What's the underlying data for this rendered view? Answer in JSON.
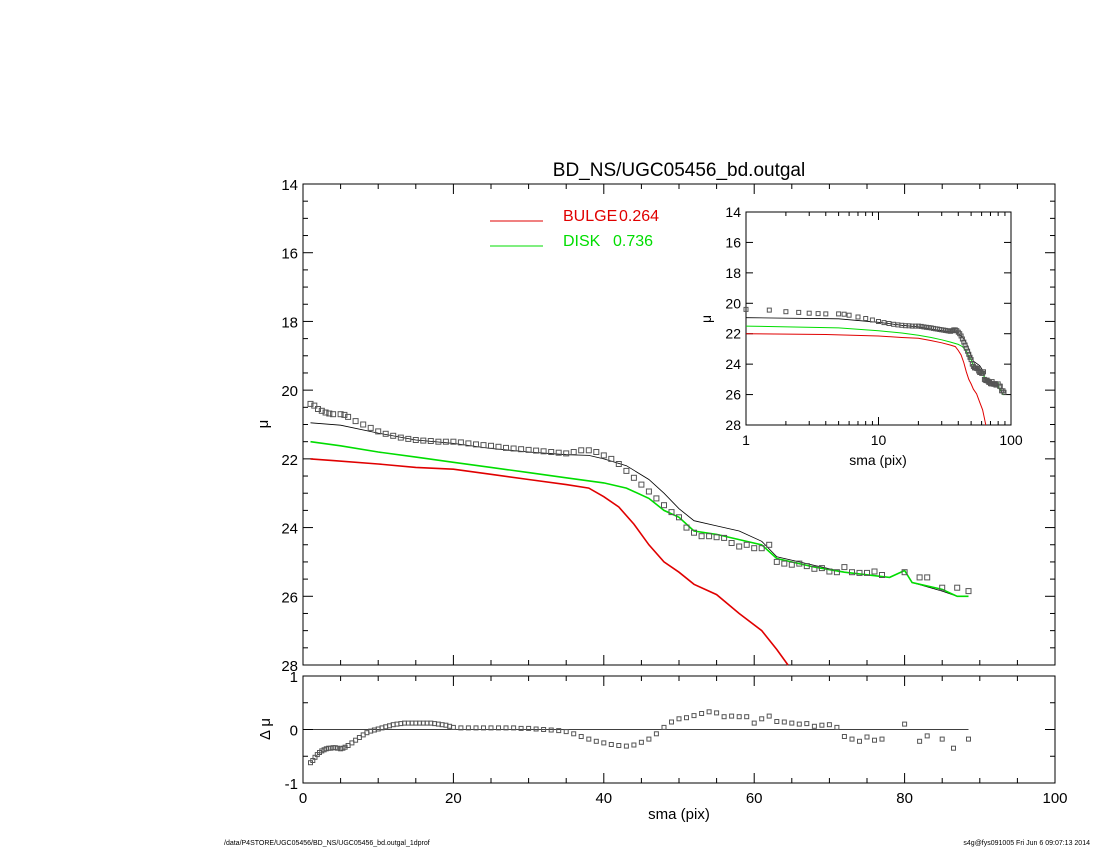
{
  "title": "BD_NS/UGC05456_bd.outgal",
  "footer": {
    "left": "/data/P4STORE/UGC05456/BD_NS/UGC05456_bd.outgal_1dprof",
    "right": "s4g@fys091005  Fri Jun  6 09:07:13 2014"
  },
  "colors": {
    "data": "#555555",
    "model": "#000000",
    "bulge": "#e00000",
    "disk": "#00dd00",
    "axis": "#000000"
  },
  "chart_data": [
    {
      "id": "main",
      "type": "line",
      "title": "BD_NS/UGC05456_bd.outgal",
      "xlabel": "sma (pix)",
      "ylabel": "μ",
      "xlim": [
        0,
        100
      ],
      "ylim": [
        28,
        14
      ],
      "x_ticks": [
        "0",
        "20",
        "40",
        "60",
        "80",
        "100"
      ],
      "y_ticks": [
        "14",
        "16",
        "18",
        "20",
        "22",
        "24",
        "26",
        "28"
      ],
      "legend": {
        "placement": "top-center",
        "entries": [
          {
            "label": "BULGE",
            "value": "0.264",
            "color": "#e00000"
          },
          {
            "label": "DISK",
            "value": "0.736",
            "color": "#00dd00"
          }
        ]
      },
      "series": [
        {
          "id": "data",
          "points": [
            [
              1.0,
              20.4
            ],
            [
              1.5,
              20.45
            ],
            [
              2.0,
              20.55
            ],
            [
              2.5,
              20.6
            ],
            [
              3.0,
              20.65
            ],
            [
              3.5,
              20.68
            ],
            [
              4.0,
              20.7
            ],
            [
              5.0,
              20.7
            ],
            [
              5.5,
              20.72
            ],
            [
              6.0,
              20.78
            ],
            [
              7.0,
              20.9
            ],
            [
              8.0,
              21.0
            ],
            [
              9.0,
              21.1
            ],
            [
              10.0,
              21.2
            ],
            [
              11.0,
              21.27
            ],
            [
              12.0,
              21.33
            ],
            [
              13.0,
              21.38
            ],
            [
              14.0,
              21.42
            ],
            [
              15.0,
              21.45
            ],
            [
              16.0,
              21.47
            ],
            [
              17.0,
              21.48
            ],
            [
              18.0,
              21.5
            ],
            [
              19.0,
              21.5
            ],
            [
              20.0,
              21.5
            ],
            [
              21.0,
              21.52
            ],
            [
              22.0,
              21.55
            ],
            [
              23.0,
              21.58
            ],
            [
              24.0,
              21.6
            ],
            [
              25.0,
              21.62
            ],
            [
              26.0,
              21.65
            ],
            [
              27.0,
              21.68
            ],
            [
              28.0,
              21.7
            ],
            [
              29.0,
              21.72
            ],
            [
              30.0,
              21.74
            ],
            [
              31.0,
              21.76
            ],
            [
              32.0,
              21.78
            ],
            [
              33.0,
              21.8
            ],
            [
              34.0,
              21.82
            ],
            [
              35.0,
              21.84
            ],
            [
              36.0,
              21.8
            ],
            [
              37.0,
              21.75
            ],
            [
              38.0,
              21.75
            ],
            [
              39.0,
              21.8
            ],
            [
              40.0,
              21.9
            ],
            [
              41.0,
              22.0
            ],
            [
              42.0,
              22.15
            ],
            [
              43.0,
              22.35
            ],
            [
              44.0,
              22.55
            ],
            [
              45.0,
              22.75
            ],
            [
              46.0,
              22.95
            ],
            [
              47.0,
              23.15
            ],
            [
              48.0,
              23.35
            ],
            [
              49.0,
              23.55
            ],
            [
              50.0,
              23.7
            ],
            [
              51.0,
              24.0
            ],
            [
              52.0,
              24.15
            ],
            [
              53.0,
              24.25
            ],
            [
              54.0,
              24.25
            ],
            [
              55.0,
              24.28
            ],
            [
              56.0,
              24.3
            ],
            [
              57.0,
              24.45
            ],
            [
              58.0,
              24.55
            ],
            [
              59.0,
              24.5
            ],
            [
              60.0,
              24.6
            ],
            [
              61.0,
              24.6
            ],
            [
              62.0,
              24.5
            ],
            [
              63.0,
              25.0
            ],
            [
              64.0,
              25.05
            ],
            [
              65.0,
              25.08
            ],
            [
              66.0,
              25.05
            ],
            [
              67.0,
              25.12
            ],
            [
              68.0,
              25.2
            ],
            [
              69.0,
              25.18
            ],
            [
              70.0,
              25.28
            ],
            [
              71.0,
              25.3
            ],
            [
              72.0,
              25.15
            ],
            [
              73.0,
              25.3
            ],
            [
              74.0,
              25.32
            ],
            [
              75.0,
              25.32
            ],
            [
              76.0,
              25.28
            ],
            [
              77.0,
              25.38
            ],
            [
              80.0,
              25.3
            ],
            [
              82.0,
              25.45
            ],
            [
              83.0,
              25.45
            ],
            [
              85.0,
              25.75
            ],
            [
              87.0,
              25.75
            ],
            [
              88.5,
              25.85
            ]
          ]
        },
        {
          "id": "model",
          "points": [
            [
              1.0,
              20.95
            ],
            [
              5.0,
              21.02
            ],
            [
              10.0,
              21.25
            ],
            [
              15.0,
              21.45
            ],
            [
              20.0,
              21.55
            ],
            [
              25.0,
              21.7
            ],
            [
              30.0,
              21.8
            ],
            [
              35.0,
              21.88
            ],
            [
              38.0,
              21.9
            ],
            [
              40.0,
              22.0
            ],
            [
              43.0,
              22.2
            ],
            [
              46.0,
              22.6
            ],
            [
              48.0,
              23.0
            ],
            [
              50.0,
              23.45
            ],
            [
              52.0,
              23.8
            ],
            [
              55.0,
              23.95
            ],
            [
              58.0,
              24.1
            ],
            [
              61.0,
              24.4
            ],
            [
              63.0,
              24.85
            ],
            [
              68.0,
              25.1
            ],
            [
              72.0,
              25.3
            ],
            [
              78.0,
              25.45
            ],
            [
              80.0,
              25.25
            ],
            [
              81.0,
              25.6
            ],
            [
              85.0,
              25.85
            ],
            [
              87.0,
              26.0
            ],
            [
              88.5,
              26.0
            ]
          ]
        },
        {
          "id": "bulge",
          "name": "BULGE",
          "points": [
            [
              1.0,
              22.0
            ],
            [
              4.0,
              22.05
            ],
            [
              10.0,
              22.15
            ],
            [
              15.0,
              22.25
            ],
            [
              20.0,
              22.3
            ],
            [
              25.0,
              22.45
            ],
            [
              30.0,
              22.6
            ],
            [
              35.0,
              22.75
            ],
            [
              38.0,
              22.85
            ],
            [
              40.0,
              23.1
            ],
            [
              42.0,
              23.4
            ],
            [
              44.0,
              23.9
            ],
            [
              46.0,
              24.5
            ],
            [
              48.0,
              25.0
            ],
            [
              50.0,
              25.3
            ],
            [
              52.0,
              25.65
            ],
            [
              55.0,
              25.95
            ],
            [
              58.0,
              26.5
            ],
            [
              61.0,
              27.0
            ],
            [
              63.0,
              27.55
            ],
            [
              64.5,
              28.0
            ]
          ]
        },
        {
          "id": "disk",
          "name": "DISK",
          "points": [
            [
              1.0,
              21.5
            ],
            [
              5.0,
              21.62
            ],
            [
              10.0,
              21.8
            ],
            [
              15.0,
              21.95
            ],
            [
              20.0,
              22.1
            ],
            [
              25.0,
              22.25
            ],
            [
              30.0,
              22.4
            ],
            [
              35.0,
              22.55
            ],
            [
              40.0,
              22.7
            ],
            [
              43.0,
              22.85
            ],
            [
              46.0,
              23.15
            ],
            [
              48.0,
              23.5
            ],
            [
              50.0,
              23.7
            ],
            [
              52.0,
              24.1
            ],
            [
              55.0,
              24.2
            ],
            [
              58.0,
              24.35
            ],
            [
              61.0,
              24.5
            ],
            [
              63.0,
              24.9
            ],
            [
              68.0,
              25.15
            ],
            [
              72.0,
              25.3
            ],
            [
              78.0,
              25.45
            ],
            [
              80.0,
              25.25
            ],
            [
              81.0,
              25.6
            ],
            [
              85.0,
              25.8
            ],
            [
              87.0,
              26.0
            ],
            [
              88.5,
              26.0
            ]
          ]
        }
      ]
    },
    {
      "id": "residual",
      "type": "scatter",
      "xlabel": "sma (pix)",
      "ylabel": "Δ μ",
      "xlim": [
        0,
        100
      ],
      "ylim": [
        -1,
        1
      ],
      "x_ticks": [
        "0",
        "20",
        "40",
        "60",
        "80",
        "100"
      ],
      "y_ticks": [
        "-1",
        "0",
        "1"
      ],
      "zero_line": true,
      "points": [
        [
          1.0,
          -0.62
        ],
        [
          1.3,
          -0.58
        ],
        [
          1.6,
          -0.52
        ],
        [
          1.9,
          -0.47
        ],
        [
          2.2,
          -0.43
        ],
        [
          2.5,
          -0.4
        ],
        [
          2.8,
          -0.38
        ],
        [
          3.1,
          -0.36
        ],
        [
          3.4,
          -0.35
        ],
        [
          3.7,
          -0.35
        ],
        [
          4.0,
          -0.34
        ],
        [
          4.3,
          -0.34
        ],
        [
          4.6,
          -0.35
        ],
        [
          5.0,
          -0.36
        ],
        [
          5.3,
          -0.35
        ],
        [
          5.6,
          -0.33
        ],
        [
          6.0,
          -0.3
        ],
        [
          6.5,
          -0.25
        ],
        [
          7.0,
          -0.2
        ],
        [
          7.5,
          -0.15
        ],
        [
          8.0,
          -0.1
        ],
        [
          8.5,
          -0.06
        ],
        [
          9.0,
          -0.03
        ],
        [
          9.5,
          -0.01
        ],
        [
          10.0,
          0.01
        ],
        [
          10.5,
          0.03
        ],
        [
          11.0,
          0.05
        ],
        [
          11.5,
          0.07
        ],
        [
          12.0,
          0.09
        ],
        [
          12.5,
          0.1
        ],
        [
          13.0,
          0.11
        ],
        [
          13.5,
          0.12
        ],
        [
          14.0,
          0.12
        ],
        [
          14.5,
          0.12
        ],
        [
          15.0,
          0.12
        ],
        [
          15.5,
          0.12
        ],
        [
          16.0,
          0.12
        ],
        [
          16.5,
          0.12
        ],
        [
          17.0,
          0.12
        ],
        [
          17.5,
          0.11
        ],
        [
          18.0,
          0.1
        ],
        [
          18.5,
          0.09
        ],
        [
          19.0,
          0.08
        ],
        [
          19.5,
          0.06
        ],
        [
          20.0,
          0.04
        ],
        [
          21,
          0.03
        ],
        [
          22,
          0.03
        ],
        [
          23,
          0.03
        ],
        [
          24,
          0.03
        ],
        [
          25,
          0.03
        ],
        [
          26,
          0.03
        ],
        [
          27,
          0.03
        ],
        [
          28,
          0.03
        ],
        [
          29,
          0.02
        ],
        [
          30,
          0.02
        ],
        [
          31,
          0.01
        ],
        [
          32,
          0.0
        ],
        [
          33,
          -0.01
        ],
        [
          34,
          -0.02
        ],
        [
          35,
          -0.04
        ],
        [
          36,
          -0.08
        ],
        [
          37,
          -0.13
        ],
        [
          38,
          -0.18
        ],
        [
          39,
          -0.22
        ],
        [
          40,
          -0.25
        ],
        [
          41,
          -0.28
        ],
        [
          42,
          -0.3
        ],
        [
          43,
          -0.31
        ],
        [
          44,
          -0.29
        ],
        [
          45,
          -0.24
        ],
        [
          46,
          -0.18
        ],
        [
          47,
          -0.08
        ],
        [
          48,
          0.04
        ],
        [
          49,
          0.14
        ],
        [
          50,
          0.2
        ],
        [
          51,
          0.22
        ],
        [
          52,
          0.26
        ],
        [
          53,
          0.3
        ],
        [
          54,
          0.33
        ],
        [
          55,
          0.31
        ],
        [
          56,
          0.24
        ],
        [
          57,
          0.25
        ],
        [
          58,
          0.24
        ],
        [
          59,
          0.24
        ],
        [
          60,
          0.12
        ],
        [
          61,
          0.2
        ],
        [
          62,
          0.25
        ],
        [
          63,
          0.15
        ],
        [
          64,
          0.14
        ],
        [
          65,
          0.12
        ],
        [
          66,
          0.1
        ],
        [
          67,
          0.11
        ],
        [
          68,
          0.06
        ],
        [
          69,
          0.08
        ],
        [
          70,
          0.09
        ],
        [
          71,
          0.04
        ],
        [
          72,
          -0.13
        ],
        [
          73,
          -0.18
        ],
        [
          74,
          -0.22
        ],
        [
          75,
          -0.14
        ],
        [
          76,
          -0.2
        ],
        [
          77,
          -0.18
        ],
        [
          80,
          0.1
        ],
        [
          82,
          -0.22
        ],
        [
          83,
          -0.12
        ],
        [
          85,
          -0.18
        ],
        [
          86.5,
          -0.35
        ],
        [
          88.5,
          -0.18
        ]
      ]
    },
    {
      "id": "inset",
      "type": "line",
      "xlabel": "sma (pix)",
      "ylabel": "μ",
      "xscale": "log",
      "xlim": [
        1,
        100
      ],
      "ylim": [
        28,
        14
      ],
      "x_ticks": [
        "1",
        "10",
        "100"
      ],
      "y_ticks": [
        "14",
        "16",
        "18",
        "20",
        "22",
        "24",
        "26",
        "28"
      ],
      "series": [
        {
          "id": "data",
          "source": "main.data"
        },
        {
          "id": "model",
          "source": "main.model"
        },
        {
          "id": "bulge",
          "source": "main.bulge"
        },
        {
          "id": "disk",
          "source": "main.disk"
        }
      ]
    }
  ]
}
